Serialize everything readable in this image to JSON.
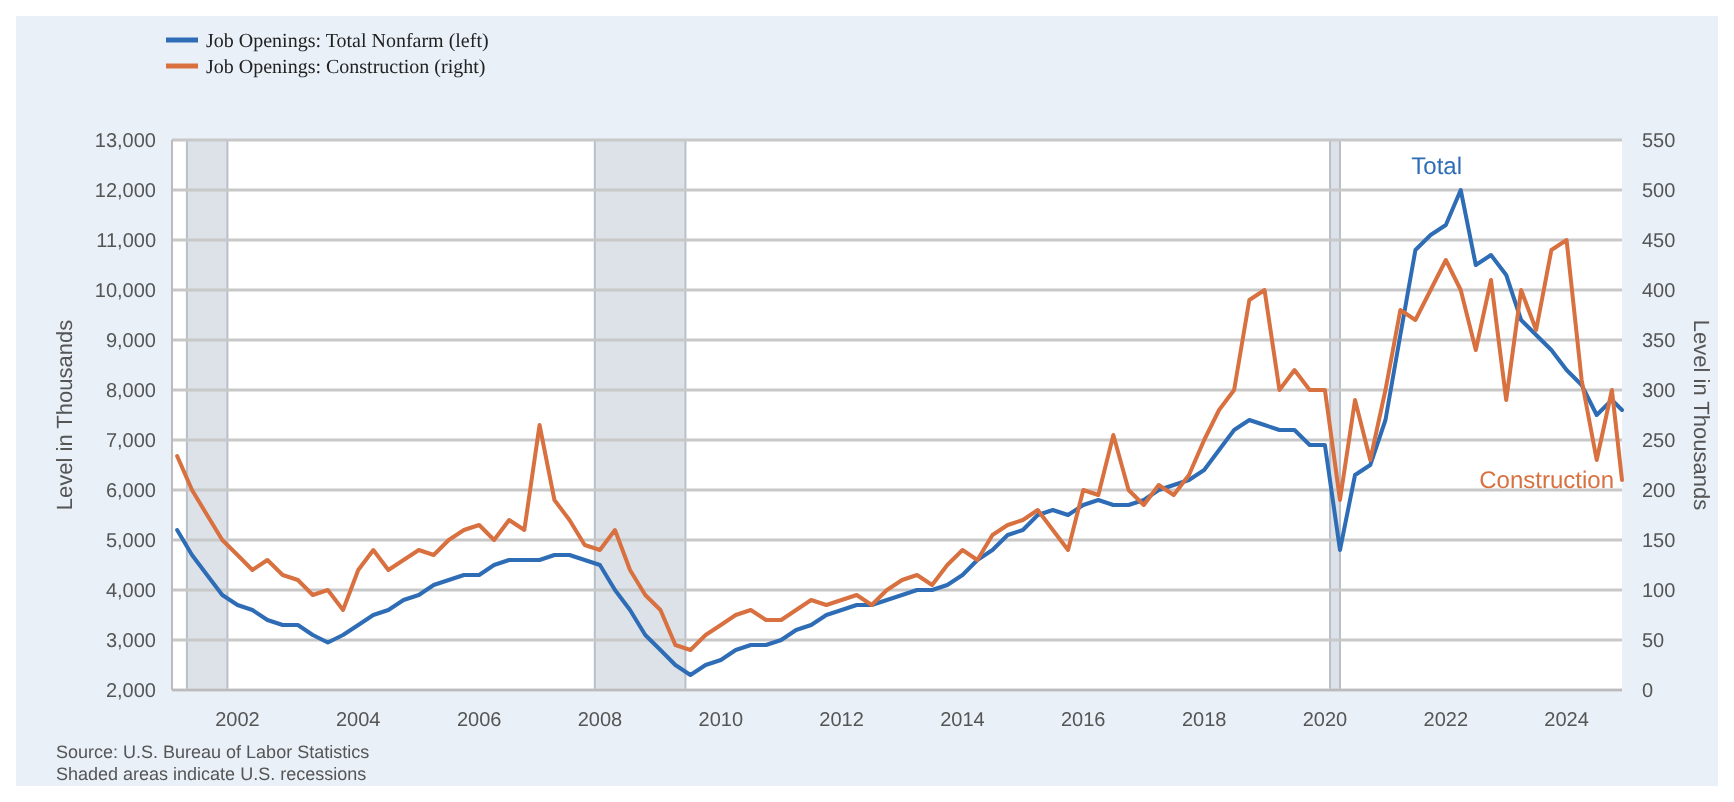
{
  "chart_data": {
    "type": "line",
    "ylabel": "Level in Thousands",
    "y2label": "Level in Thousands",
    "x": [
      "2001-01",
      "2001-04",
      "2001-07",
      "2001-10",
      "2002-01",
      "2002-04",
      "2002-07",
      "2002-10",
      "2003-01",
      "2003-04",
      "2003-07",
      "2003-10",
      "2004-01",
      "2004-04",
      "2004-07",
      "2004-10",
      "2005-01",
      "2005-04",
      "2005-07",
      "2005-10",
      "2006-01",
      "2006-04",
      "2006-07",
      "2006-10",
      "2007-01",
      "2007-04",
      "2007-07",
      "2007-10",
      "2008-01",
      "2008-04",
      "2008-07",
      "2008-10",
      "2009-01",
      "2009-04",
      "2009-07",
      "2009-10",
      "2010-01",
      "2010-04",
      "2010-07",
      "2010-10",
      "2011-01",
      "2011-04",
      "2011-07",
      "2011-10",
      "2012-01",
      "2012-04",
      "2012-07",
      "2012-10",
      "2013-01",
      "2013-04",
      "2013-07",
      "2013-10",
      "2014-01",
      "2014-04",
      "2014-07",
      "2014-10",
      "2015-01",
      "2015-04",
      "2015-07",
      "2015-10",
      "2016-01",
      "2016-04",
      "2016-07",
      "2016-10",
      "2017-01",
      "2017-04",
      "2017-07",
      "2017-10",
      "2018-01",
      "2018-04",
      "2018-07",
      "2018-10",
      "2019-01",
      "2019-04",
      "2019-07",
      "2019-10",
      "2020-01",
      "2020-04",
      "2020-07",
      "2020-10",
      "2021-01",
      "2021-04",
      "2021-07",
      "2021-10",
      "2022-01",
      "2022-04",
      "2022-07",
      "2022-10",
      "2023-01",
      "2023-04",
      "2023-07",
      "2023-10",
      "2024-01",
      "2024-04",
      "2024-07",
      "2024-10",
      "2024-12"
    ],
    "series": [
      {
        "name": "Job Openings: Total Nonfarm (left)",
        "color": "#2e6db5",
        "values": [
          5200,
          4700,
          4300,
          3900,
          3700,
          3600,
          3400,
          3300,
          3300,
          3100,
          2950,
          3100,
          3300,
          3500,
          3600,
          3800,
          3900,
          4100,
          4200,
          4300,
          4300,
          4500,
          4600,
          4600,
          4600,
          4700,
          4700,
          4600,
          4500,
          4000,
          3600,
          3100,
          2800,
          2500,
          2300,
          2500,
          2600,
          2800,
          2900,
          2900,
          3000,
          3200,
          3300,
          3500,
          3600,
          3700,
          3700,
          3800,
          3900,
          4000,
          4000,
          4100,
          4300,
          4600,
          4800,
          5100,
          5200,
          5500,
          5600,
          5500,
          5700,
          5800,
          5700,
          5700,
          5800,
          6000,
          6100,
          6200,
          6400,
          6800,
          7200,
          7400,
          7300,
          7200,
          7200,
          6900,
          6900,
          4800,
          6300,
          6500,
          7400,
          9100,
          10800,
          11100,
          11300,
          12000,
          10500,
          10700,
          10300,
          9400,
          9100,
          8800,
          8400,
          8100,
          7500,
          7800,
          7600
        ]
      },
      {
        "name": "Job Openings: Construction (right)",
        "color": "#d8703f",
        "axis": "y2",
        "values": [
          234,
          200,
          175,
          150,
          135,
          120,
          130,
          115,
          110,
          95,
          100,
          80,
          120,
          140,
          120,
          130,
          140,
          135,
          150,
          160,
          165,
          150,
          170,
          160,
          265,
          190,
          170,
          145,
          140,
          160,
          120,
          95,
          80,
          45,
          40,
          55,
          65,
          75,
          80,
          70,
          70,
          80,
          90,
          85,
          90,
          95,
          85,
          100,
          110,
          115,
          105,
          125,
          140,
          130,
          155,
          165,
          170,
          180,
          160,
          140,
          200,
          195,
          255,
          200,
          185,
          205,
          195,
          215,
          250,
          280,
          300,
          390,
          400,
          300,
          320,
          300,
          300,
          190,
          290,
          230,
          300,
          380,
          370,
          400,
          430,
          400,
          340,
          410,
          290,
          400,
          360,
          440,
          450,
          310,
          230,
          300,
          210
        ]
      }
    ],
    "xlim": [
      "2000-12",
      "2024-12"
    ],
    "xticks": [
      {
        "value": "2002",
        "label": "2002"
      },
      {
        "value": "2004",
        "label": "2004"
      },
      {
        "value": "2006",
        "label": "2006"
      },
      {
        "value": "2008",
        "label": "2008"
      },
      {
        "value": "2010",
        "label": "2010"
      },
      {
        "value": "2012",
        "label": "2012"
      },
      {
        "value": "2014",
        "label": "2014"
      },
      {
        "value": "2016",
        "label": "2016"
      },
      {
        "value": "2018",
        "label": "2018"
      },
      {
        "value": "2020",
        "label": "2020"
      },
      {
        "value": "2022",
        "label": "2022"
      },
      {
        "value": "2024",
        "label": "2024"
      }
    ],
    "ylim": [
      2000,
      13000
    ],
    "yticks": [
      {
        "value": 2000,
        "label": "2,000"
      },
      {
        "value": 3000,
        "label": "3,000"
      },
      {
        "value": 4000,
        "label": "4,000"
      },
      {
        "value": 5000,
        "label": "5,000"
      },
      {
        "value": 6000,
        "label": "6,000"
      },
      {
        "value": 7000,
        "label": "7,000"
      },
      {
        "value": 8000,
        "label": "8,000"
      },
      {
        "value": 9000,
        "label": "9,000"
      },
      {
        "value": 10000,
        "label": "10,000"
      },
      {
        "value": 11000,
        "label": "11,000"
      },
      {
        "value": 12000,
        "label": "12,000"
      },
      {
        "value": 13000,
        "label": "13,000"
      }
    ],
    "y2lim": [
      0,
      550
    ],
    "y2ticks": [
      0,
      50,
      100,
      150,
      200,
      250,
      300,
      350,
      400,
      450,
      500,
      550
    ],
    "bands": [
      {
        "axis": "x",
        "from": "2001-03",
        "to": "2001-11",
        "color": "#dde2e8"
      },
      {
        "axis": "x",
        "from": "2007-12",
        "to": "2009-06",
        "color": "#dde2e8"
      },
      {
        "axis": "x",
        "from": "2020-02",
        "to": "2020-04",
        "color": "#dde2e8"
      }
    ],
    "annotations": [
      "Total",
      "Construction",
      "Source: U.S. Bureau of Labor Statistics",
      "Shaded areas indicate U.S. recessions"
    ],
    "grid": "y",
    "legend": "top left",
    "marker": "none",
    "line_style": "solid"
  }
}
